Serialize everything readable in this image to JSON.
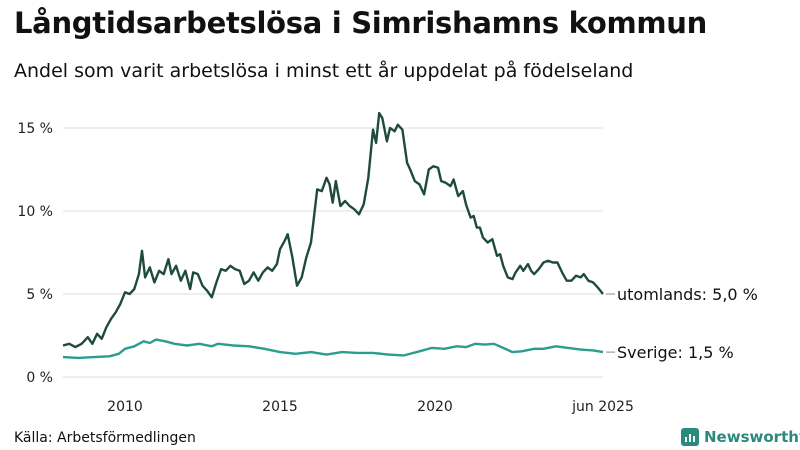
{
  "title": "Långtidsarbetslösa i Simrishamns kommun",
  "subtitle": "Andel som varit arbetslösa i minst ett år uppdelat på födelseland",
  "source": "Källa: Arbetsförmedlingen",
  "brand": {
    "name": "Newsworthy",
    "icon": "newsworthy-logo-icon",
    "color": "#2a8a7b"
  },
  "chart_data": {
    "type": "line",
    "title": "Långtidsarbetslösa i Simrishamns kommun",
    "subtitle": "Andel som varit arbetslösa i minst ett år uppdelat på födelseland",
    "xlabel": "",
    "ylabel": "",
    "x_range": [
      2008.0,
      2025.42
    ],
    "ylim": [
      0,
      16.5
    ],
    "grid": true,
    "legend": "end-of-line labels",
    "x_ticks": [
      {
        "value": 2010,
        "label": "2010"
      },
      {
        "value": 2015,
        "label": "2015"
      },
      {
        "value": 2020,
        "label": "2020"
      },
      {
        "value": 2025.42,
        "label": "jun 2025"
      }
    ],
    "y_ticks": [
      {
        "value": 0,
        "label": "0 %"
      },
      {
        "value": 5,
        "label": "5 %"
      },
      {
        "value": 10,
        "label": "10 %"
      },
      {
        "value": 15,
        "label": "15 %"
      }
    ],
    "series": [
      {
        "name": "utomlands",
        "end_label": "utomlands: 5,0 %",
        "color": "#1f4a40",
        "points": [
          [
            2008.0,
            1.9
          ],
          [
            2008.2,
            2.0
          ],
          [
            2008.4,
            1.8
          ],
          [
            2008.6,
            2.0
          ],
          [
            2008.8,
            2.4
          ],
          [
            2008.95,
            2.0
          ],
          [
            2009.1,
            2.6
          ],
          [
            2009.25,
            2.3
          ],
          [
            2009.4,
            3.0
          ],
          [
            2009.55,
            3.5
          ],
          [
            2009.7,
            3.9
          ],
          [
            2009.85,
            4.4
          ],
          [
            2010.0,
            5.1
          ],
          [
            2010.15,
            5.0
          ],
          [
            2010.3,
            5.3
          ],
          [
            2010.45,
            6.2
          ],
          [
            2010.55,
            7.6
          ],
          [
            2010.65,
            6.0
          ],
          [
            2010.8,
            6.6
          ],
          [
            2010.95,
            5.7
          ],
          [
            2011.1,
            6.4
          ],
          [
            2011.25,
            6.2
          ],
          [
            2011.4,
            7.1
          ],
          [
            2011.5,
            6.2
          ],
          [
            2011.65,
            6.7
          ],
          [
            2011.8,
            5.8
          ],
          [
            2011.95,
            6.4
          ],
          [
            2012.1,
            5.3
          ],
          [
            2012.2,
            6.3
          ],
          [
            2012.35,
            6.2
          ],
          [
            2012.5,
            5.5
          ],
          [
            2012.65,
            5.2
          ],
          [
            2012.8,
            4.8
          ],
          [
            2012.95,
            5.7
          ],
          [
            2013.1,
            6.5
          ],
          [
            2013.25,
            6.4
          ],
          [
            2013.4,
            6.7
          ],
          [
            2013.55,
            6.5
          ],
          [
            2013.7,
            6.4
          ],
          [
            2013.85,
            5.6
          ],
          [
            2014.0,
            5.8
          ],
          [
            2014.15,
            6.3
          ],
          [
            2014.3,
            5.8
          ],
          [
            2014.45,
            6.3
          ],
          [
            2014.6,
            6.6
          ],
          [
            2014.75,
            6.4
          ],
          [
            2014.9,
            6.8
          ],
          [
            2015.0,
            7.7
          ],
          [
            2015.15,
            8.2
          ],
          [
            2015.25,
            8.6
          ],
          [
            2015.4,
            7.2
          ],
          [
            2015.55,
            5.5
          ],
          [
            2015.7,
            6.0
          ],
          [
            2015.85,
            7.2
          ],
          [
            2016.0,
            8.1
          ],
          [
            2016.2,
            11.3
          ],
          [
            2016.35,
            11.2
          ],
          [
            2016.5,
            12.0
          ],
          [
            2016.6,
            11.6
          ],
          [
            2016.7,
            10.5
          ],
          [
            2016.8,
            11.8
          ],
          [
            2016.95,
            10.3
          ],
          [
            2017.1,
            10.6
          ],
          [
            2017.25,
            10.3
          ],
          [
            2017.4,
            10.1
          ],
          [
            2017.55,
            9.8
          ],
          [
            2017.7,
            10.4
          ],
          [
            2017.85,
            12.0
          ],
          [
            2018.0,
            14.9
          ],
          [
            2018.1,
            14.1
          ],
          [
            2018.2,
            15.9
          ],
          [
            2018.3,
            15.6
          ],
          [
            2018.45,
            14.2
          ],
          [
            2018.55,
            15.0
          ],
          [
            2018.7,
            14.8
          ],
          [
            2018.8,
            15.2
          ],
          [
            2018.95,
            14.9
          ],
          [
            2019.1,
            12.9
          ],
          [
            2019.2,
            12.5
          ],
          [
            2019.35,
            11.8
          ],
          [
            2019.5,
            11.6
          ],
          [
            2019.65,
            11.0
          ],
          [
            2019.8,
            12.5
          ],
          [
            2019.95,
            12.7
          ],
          [
            2020.1,
            12.6
          ],
          [
            2020.2,
            11.8
          ],
          [
            2020.35,
            11.7
          ],
          [
            2020.5,
            11.5
          ],
          [
            2020.6,
            11.9
          ],
          [
            2020.75,
            10.9
          ],
          [
            2020.9,
            11.2
          ],
          [
            2021.0,
            10.4
          ],
          [
            2021.15,
            9.6
          ],
          [
            2021.25,
            9.7
          ],
          [
            2021.35,
            9.0
          ],
          [
            2021.45,
            9.0
          ],
          [
            2021.55,
            8.4
          ],
          [
            2021.7,
            8.1
          ],
          [
            2021.85,
            8.3
          ],
          [
            2022.0,
            7.3
          ],
          [
            2022.1,
            7.4
          ],
          [
            2022.2,
            6.7
          ],
          [
            2022.35,
            6.0
          ],
          [
            2022.5,
            5.9
          ],
          [
            2022.6,
            6.3
          ],
          [
            2022.75,
            6.7
          ],
          [
            2022.85,
            6.4
          ],
          [
            2023.0,
            6.8
          ],
          [
            2023.1,
            6.4
          ],
          [
            2023.2,
            6.2
          ],
          [
            2023.35,
            6.5
          ],
          [
            2023.5,
            6.9
          ],
          [
            2023.65,
            7.0
          ],
          [
            2023.8,
            6.9
          ],
          [
            2023.95,
            6.9
          ],
          [
            2024.1,
            6.3
          ],
          [
            2024.25,
            5.8
          ],
          [
            2024.4,
            5.8
          ],
          [
            2024.55,
            6.1
          ],
          [
            2024.7,
            6.0
          ],
          [
            2024.8,
            6.2
          ],
          [
            2024.95,
            5.8
          ],
          [
            2025.1,
            5.7
          ],
          [
            2025.25,
            5.4
          ],
          [
            2025.42,
            5.0
          ]
        ]
      },
      {
        "name": "Sverige",
        "end_label": "Sverige: 1,5 %",
        "color": "#2a9d8f",
        "points": [
          [
            2008.0,
            1.2
          ],
          [
            2008.5,
            1.15
          ],
          [
            2009.0,
            1.2
          ],
          [
            2009.5,
            1.25
          ],
          [
            2009.8,
            1.4
          ],
          [
            2010.0,
            1.7
          ],
          [
            2010.3,
            1.85
          ],
          [
            2010.6,
            2.15
          ],
          [
            2010.8,
            2.05
          ],
          [
            2011.0,
            2.25
          ],
          [
            2011.3,
            2.15
          ],
          [
            2011.6,
            2.0
          ],
          [
            2012.0,
            1.9
          ],
          [
            2012.4,
            2.0
          ],
          [
            2012.8,
            1.85
          ],
          [
            2013.0,
            2.0
          ],
          [
            2013.5,
            1.9
          ],
          [
            2014.0,
            1.85
          ],
          [
            2014.5,
            1.7
          ],
          [
            2015.0,
            1.5
          ],
          [
            2015.5,
            1.4
          ],
          [
            2016.0,
            1.5
          ],
          [
            2016.5,
            1.35
          ],
          [
            2017.0,
            1.5
          ],
          [
            2017.5,
            1.45
          ],
          [
            2018.0,
            1.45
          ],
          [
            2018.5,
            1.35
          ],
          [
            2019.0,
            1.3
          ],
          [
            2019.5,
            1.55
          ],
          [
            2019.9,
            1.75
          ],
          [
            2020.3,
            1.7
          ],
          [
            2020.7,
            1.85
          ],
          [
            2021.0,
            1.8
          ],
          [
            2021.3,
            2.0
          ],
          [
            2021.6,
            1.95
          ],
          [
            2021.9,
            2.0
          ],
          [
            2022.2,
            1.75
          ],
          [
            2022.5,
            1.5
          ],
          [
            2022.8,
            1.55
          ],
          [
            2023.2,
            1.7
          ],
          [
            2023.5,
            1.7
          ],
          [
            2023.9,
            1.85
          ],
          [
            2024.3,
            1.75
          ],
          [
            2024.7,
            1.65
          ],
          [
            2025.1,
            1.6
          ],
          [
            2025.42,
            1.5
          ]
        ]
      }
    ]
  }
}
